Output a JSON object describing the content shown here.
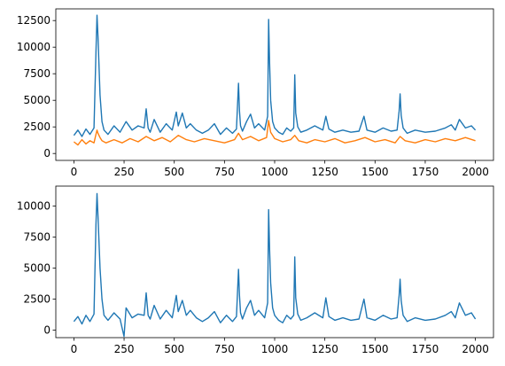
{
  "colors": {
    "series_blue": "#1f77b4",
    "series_orange": "#ff7f0e",
    "axes": "#000000",
    "background": "#ffffff"
  },
  "chart_data": [
    {
      "type": "line",
      "title": "",
      "xlabel": "",
      "ylabel": "",
      "grid": false,
      "legend": "none",
      "xlim": [
        -90,
        2090
      ],
      "ylim": [
        -650,
        13600
      ],
      "xticks": [
        0,
        250,
        500,
        750,
        1000,
        1250,
        1500,
        1750,
        2000
      ],
      "yticks": [
        0,
        2500,
        5000,
        7500,
        10000,
        12500
      ],
      "xtick_labels": [
        "0",
        "250",
        "500",
        "750",
        "1000",
        "1250",
        "1500",
        "1750",
        "2000"
      ],
      "ytick_labels": [
        "0",
        "2500",
        "5000",
        "7500",
        "10000",
        "12500"
      ],
      "series": [
        {
          "color": "#1f77b4",
          "x": [
            0,
            20,
            40,
            60,
            80,
            100,
            110,
            115,
            120,
            130,
            140,
            150,
            170,
            200,
            230,
            260,
            290,
            320,
            350,
            360,
            370,
            380,
            400,
            430,
            460,
            490,
            510,
            520,
            540,
            560,
            580,
            610,
            640,
            670,
            700,
            730,
            760,
            790,
            810,
            820,
            825,
            830,
            840,
            860,
            880,
            900,
            920,
            950,
            965,
            970,
            975,
            980,
            990,
            1000,
            1020,
            1040,
            1060,
            1080,
            1095,
            1100,
            1105,
            1115,
            1130,
            1160,
            1200,
            1240,
            1255,
            1270,
            1300,
            1340,
            1380,
            1420,
            1445,
            1460,
            1500,
            1540,
            1580,
            1610,
            1620,
            1625,
            1630,
            1640,
            1660,
            1700,
            1750,
            1800,
            1850,
            1880,
            1900,
            1920,
            1950,
            1980,
            2000
          ],
          "y": [
            1700,
            2200,
            1600,
            2300,
            1800,
            2400,
            9500,
            13000,
            11000,
            5500,
            3000,
            2200,
            1800,
            2600,
            2000,
            3000,
            2200,
            2600,
            2400,
            4200,
            2400,
            2000,
            3200,
            2000,
            2800,
            2200,
            3900,
            2600,
            3800,
            2400,
            2800,
            2200,
            1900,
            2200,
            2800,
            1800,
            2400,
            1900,
            2300,
            6600,
            4000,
            2600,
            2100,
            3000,
            3700,
            2400,
            2800,
            2200,
            3500,
            12600,
            8500,
            5000,
            3000,
            2400,
            2000,
            1800,
            2400,
            2100,
            2400,
            7400,
            3800,
            2500,
            2000,
            2200,
            2600,
            2200,
            3500,
            2300,
            2000,
            2200,
            2000,
            2100,
            3500,
            2200,
            2000,
            2400,
            2100,
            2200,
            4000,
            5600,
            3600,
            2400,
            1900,
            2200,
            2000,
            2100,
            2400,
            2700,
            2200,
            3200,
            2400,
            2600,
            2200
          ]
        },
        {
          "color": "#ff7f0e",
          "x": [
            0,
            20,
            40,
            60,
            80,
            100,
            110,
            115,
            120,
            130,
            140,
            160,
            200,
            240,
            280,
            320,
            360,
            400,
            440,
            480,
            520,
            560,
            600,
            650,
            700,
            750,
            800,
            820,
            840,
            880,
            920,
            960,
            970,
            980,
            1000,
            1040,
            1080,
            1100,
            1120,
            1160,
            1200,
            1250,
            1300,
            1350,
            1400,
            1450,
            1500,
            1550,
            1600,
            1625,
            1650,
            1700,
            1750,
            1800,
            1850,
            1900,
            1950,
            2000
          ],
          "y": [
            1100,
            800,
            1300,
            900,
            1200,
            1000,
            1800,
            2200,
            1900,
            1500,
            1200,
            1000,
            1300,
            1000,
            1400,
            1100,
            1600,
            1200,
            1500,
            1100,
            1700,
            1300,
            1100,
            1400,
            1200,
            1000,
            1300,
            1900,
            1300,
            1600,
            1200,
            1500,
            3100,
            2000,
            1400,
            1100,
            1300,
            1700,
            1200,
            1000,
            1300,
            1100,
            1400,
            1000,
            1200,
            1500,
            1100,
            1300,
            1000,
            1600,
            1200,
            1000,
            1300,
            1100,
            1400,
            1200,
            1500,
            1200
          ]
        }
      ]
    },
    {
      "type": "line",
      "title": "",
      "xlabel": "",
      "ylabel": "",
      "grid": false,
      "legend": "none",
      "xlim": [
        -90,
        2090
      ],
      "ylim": [
        -600,
        11600
      ],
      "xticks": [
        0,
        250,
        500,
        750,
        1000,
        1250,
        1500,
        1750,
        2000
      ],
      "yticks": [
        0,
        2500,
        5000,
        7500,
        10000
      ],
      "xtick_labels": [
        "0",
        "250",
        "500",
        "750",
        "1000",
        "1250",
        "1500",
        "1750",
        "2000"
      ],
      "ytick_labels": [
        "0",
        "2500",
        "5000",
        "7500",
        "10000"
      ],
      "series": [
        {
          "color": "#1f77b4",
          "x": [
            0,
            20,
            40,
            60,
            80,
            100,
            110,
            115,
            120,
            130,
            140,
            150,
            170,
            200,
            230,
            250,
            260,
            290,
            320,
            350,
            360,
            370,
            380,
            400,
            430,
            460,
            490,
            510,
            520,
            540,
            560,
            580,
            610,
            640,
            670,
            700,
            730,
            760,
            790,
            810,
            820,
            825,
            830,
            840,
            860,
            880,
            900,
            920,
            950,
            965,
            970,
            975,
            980,
            990,
            1000,
            1020,
            1040,
            1060,
            1080,
            1095,
            1100,
            1105,
            1115,
            1130,
            1160,
            1200,
            1240,
            1255,
            1270,
            1300,
            1340,
            1380,
            1420,
            1445,
            1460,
            1500,
            1540,
            1580,
            1610,
            1620,
            1625,
            1630,
            1640,
            1660,
            1700,
            1750,
            1800,
            1850,
            1880,
            1900,
            1920,
            1950,
            1980,
            2000
          ],
          "y": [
            700,
            1100,
            500,
            1200,
            700,
            1300,
            8500,
            11000,
            9200,
            5000,
            2500,
            1200,
            800,
            1400,
            900,
            -500,
            1800,
            1000,
            1300,
            1200,
            3000,
            1200,
            900,
            2000,
            900,
            1600,
            1000,
            2800,
            1500,
            2400,
            1200,
            1600,
            1000,
            700,
            1000,
            1500,
            600,
            1200,
            700,
            1100,
            4900,
            2800,
            1400,
            900,
            1800,
            2400,
            1200,
            1600,
            1000,
            2200,
            9700,
            6500,
            3800,
            1800,
            1200,
            800,
            600,
            1200,
            900,
            1200,
            5900,
            2600,
            1300,
            800,
            1000,
            1400,
            1000,
            2600,
            1100,
            800,
            1000,
            800,
            900,
            2500,
            1000,
            800,
            1200,
            900,
            1000,
            2800,
            4100,
            2400,
            1200,
            700,
            1000,
            800,
            900,
            1200,
            1500,
            1000,
            2200,
            1200,
            1400,
            900
          ]
        }
      ]
    }
  ]
}
